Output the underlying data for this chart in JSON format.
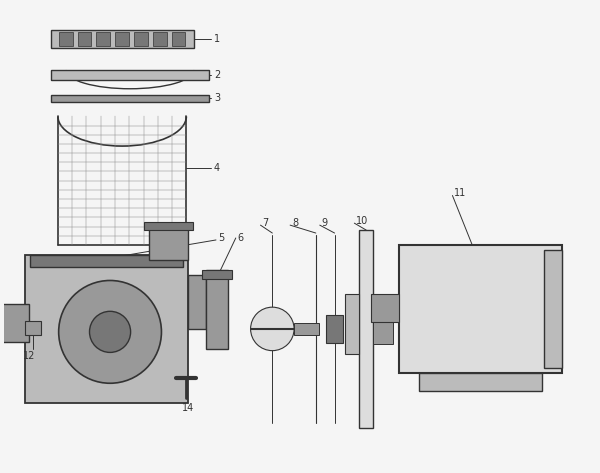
{
  "bg_color": "#f5f5f5",
  "dc": "#333333",
  "mc": "#888888",
  "lc": "#aaaaaa",
  "fc_light": "#dddddd",
  "fc_mid": "#bbbbbb",
  "fc_dark": "#999999",
  "fc_darker": "#777777",
  "fig_width": 6.0,
  "fig_height": 4.73,
  "dpi": 100
}
